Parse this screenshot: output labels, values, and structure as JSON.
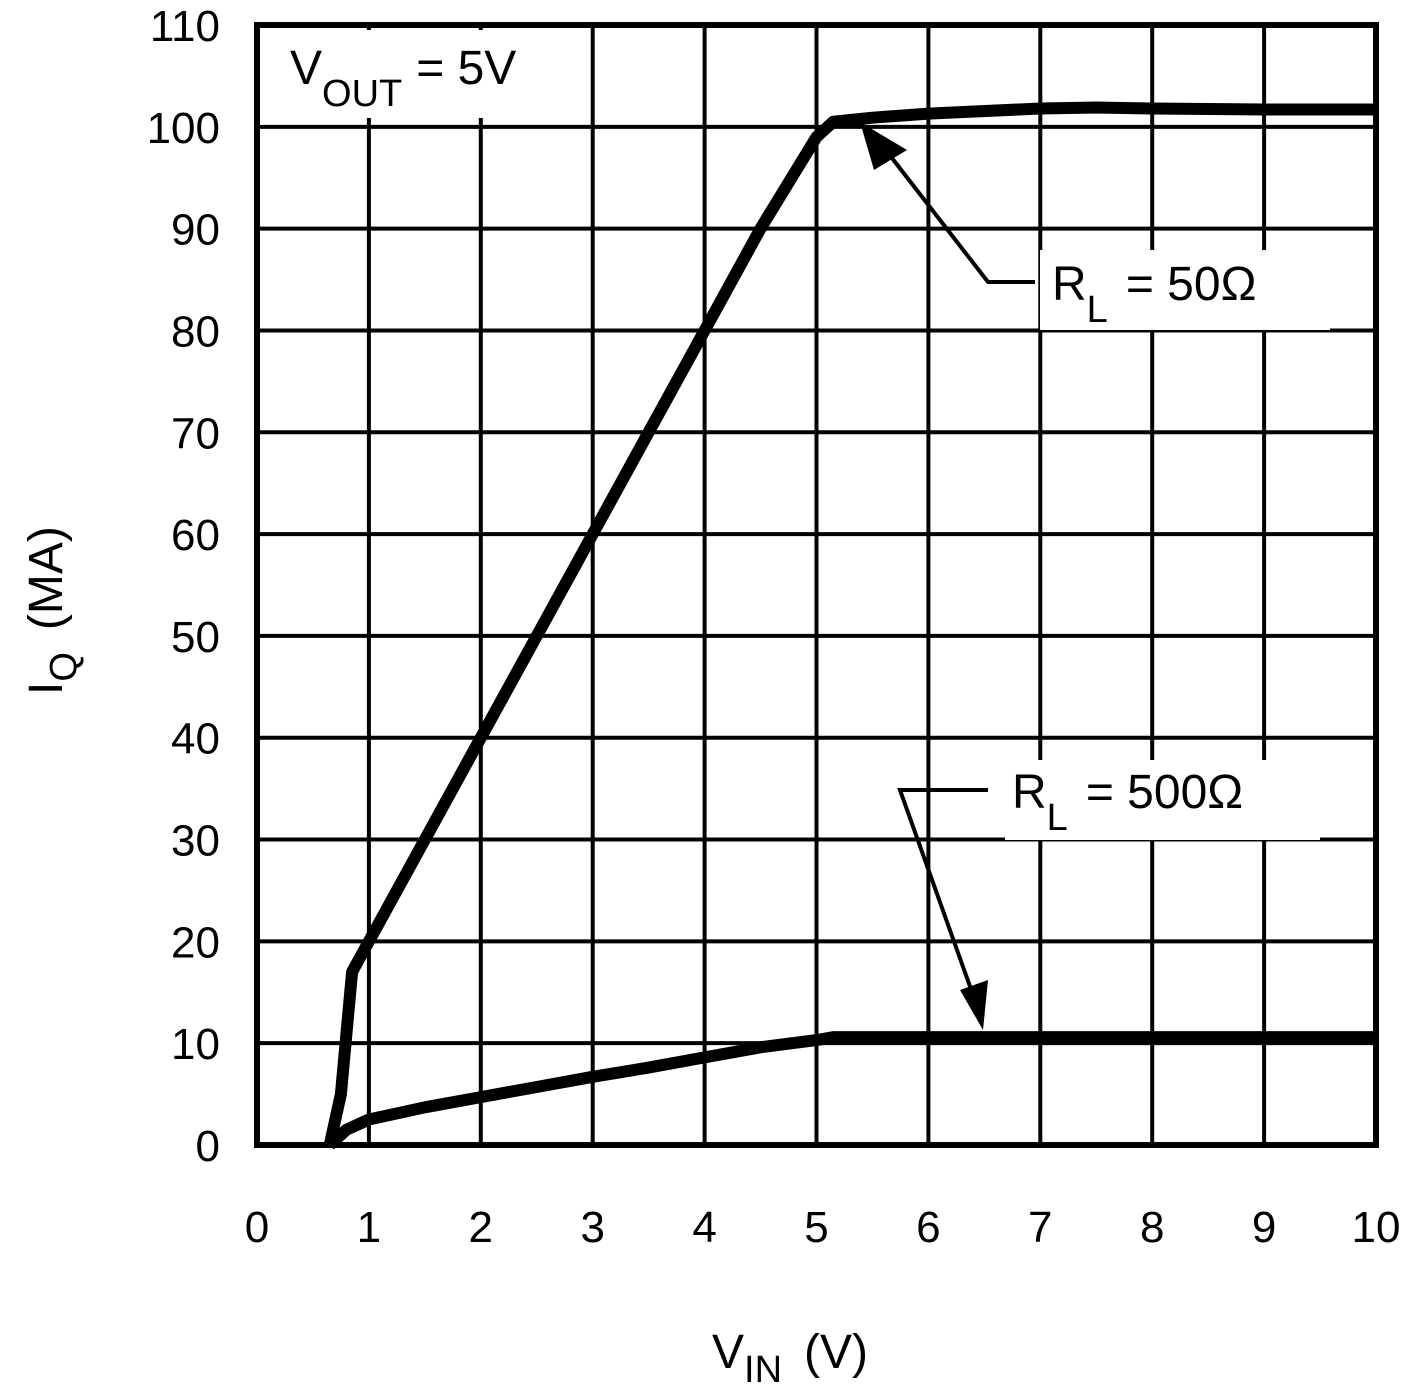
{
  "chart_data": {
    "type": "line",
    "title": "",
    "xlabel": "V_IN (V)",
    "ylabel": "I_Q (MA)",
    "xlim": [
      0,
      10
    ],
    "ylim": [
      0,
      110
    ],
    "grid": true,
    "x_ticks": [
      0,
      1,
      2,
      3,
      4,
      5,
      6,
      7,
      8,
      9,
      10
    ],
    "y_ticks": [
      0,
      10,
      20,
      30,
      40,
      50,
      60,
      70,
      80,
      90,
      100,
      110
    ],
    "legend": "inline annotations with arrows",
    "series": [
      {
        "name": "R_L = 50 Ω",
        "x": [
          0.65,
          0.75,
          0.85,
          1.0,
          1.5,
          2.0,
          2.5,
          3.0,
          3.5,
          4.0,
          4.5,
          5.0,
          5.15,
          5.5,
          6.0,
          7.0,
          7.5,
          8.0,
          9.0,
          10.0
        ],
        "y": [
          0.0,
          5.0,
          17.0,
          20.0,
          30.0,
          40.0,
          50.0,
          60.0,
          70.0,
          80.0,
          90.0,
          99.0,
          100.5,
          100.9,
          101.3,
          101.8,
          101.9,
          101.8,
          101.7,
          101.7
        ]
      },
      {
        "name": "R_L = 500 Ω",
        "x": [
          0.65,
          0.8,
          1.0,
          1.5,
          2.0,
          2.5,
          3.0,
          3.5,
          4.0,
          4.5,
          5.0,
          5.15,
          6.0,
          7.0,
          8.0,
          9.0,
          10.0
        ],
        "y": [
          0.0,
          1.5,
          2.5,
          3.7,
          4.7,
          5.7,
          6.7,
          7.6,
          8.6,
          9.6,
          10.3,
          10.6,
          10.6,
          10.6,
          10.6,
          10.6,
          10.6
        ]
      }
    ],
    "annotations": [
      {
        "text": "V_OUT = 5V",
        "position": "top-left inside plot"
      },
      {
        "text": "R_L = 50Ω",
        "arrow_to": [
          5.3,
          100.5
        ]
      },
      {
        "text": "R_L = 500Ω",
        "arrow_to": [
          6.55,
          11.0
        ]
      }
    ]
  },
  "labels": {
    "x_ticks": [
      "0",
      "1",
      "2",
      "3",
      "4",
      "5",
      "6",
      "7",
      "8",
      "9",
      "10"
    ],
    "y_ticks": [
      "0",
      "10",
      "20",
      "30",
      "40",
      "50",
      "60",
      "70",
      "80",
      "90",
      "100",
      "110"
    ],
    "xlabel_main": "V",
    "xlabel_sub": "IN",
    "xlabel_unit": "(V)",
    "ylabel_main": "I",
    "ylabel_sub": "Q",
    "ylabel_unit": "(MA)",
    "vout_main": "V",
    "vout_sub": "OUT",
    "vout_value": "= 5V",
    "rl50_main": "R",
    "rl50_sub": "L",
    "rl50_value": "= 50Ω",
    "rl500_main": "R",
    "rl500_sub": "L",
    "rl500_value": "= 500Ω"
  },
  "style": {
    "line_color": "#000000",
    "grid_color": "#000000",
    "background": "#ffffff"
  }
}
